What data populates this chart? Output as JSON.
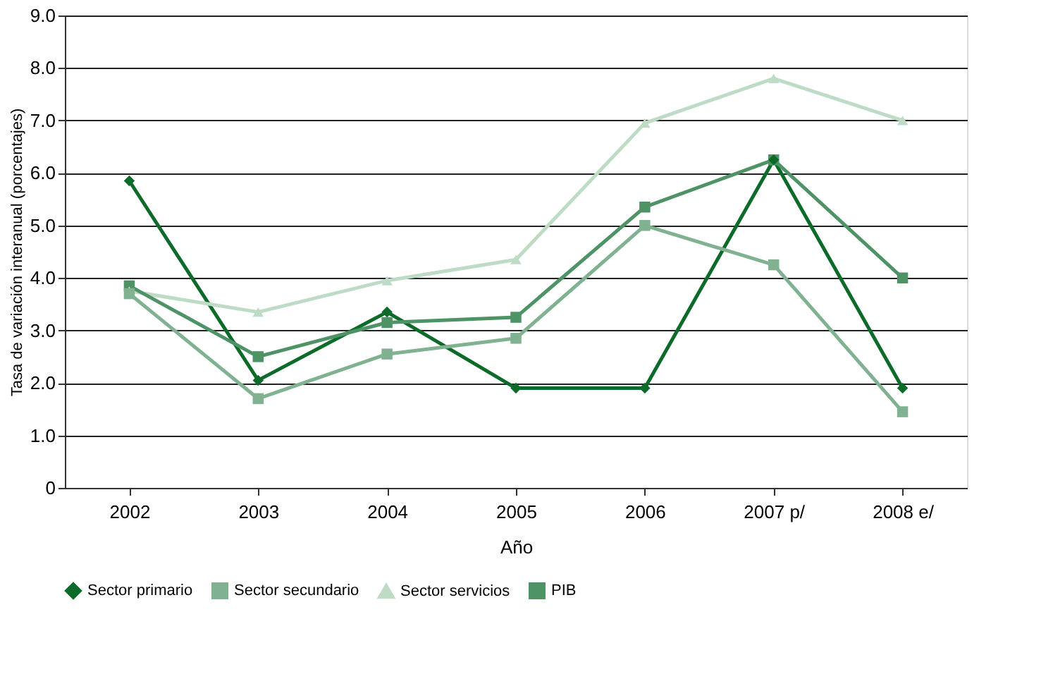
{
  "chart_data": {
    "type": "line",
    "xlabel": "Año",
    "ylabel": "Tasa de variación interanual (porcentajes)",
    "categories": [
      "2002",
      "2003",
      "2004",
      "2005",
      "2006",
      "2007 p/",
      "2008 e/"
    ],
    "series": [
      {
        "name": "Sector primario",
        "color": "#0d6b2a",
        "marker": "diamond",
        "values": [
          5.85,
          2.05,
          3.35,
          1.9,
          1.9,
          6.25,
          1.9
        ]
      },
      {
        "name": "Sector secundario",
        "color": "#80b291",
        "marker": "square",
        "values": [
          3.7,
          1.7,
          2.55,
          2.85,
          5.0,
          4.25,
          1.45
        ]
      },
      {
        "name": "Sector servicios",
        "color": "#bddbc5",
        "marker": "triangle",
        "values": [
          3.75,
          3.35,
          3.95,
          4.35,
          6.95,
          7.8,
          7.0
        ]
      },
      {
        "name": "PIB",
        "color": "#4e9366",
        "marker": "square",
        "values": [
          3.85,
          2.5,
          3.15,
          3.25,
          5.35,
          6.25,
          4.0
        ]
      }
    ],
    "ylim": [
      0,
      9
    ],
    "yticks": [
      0,
      {
        "value": 1,
        "label": "1.0"
      },
      {
        "value": 2,
        "label": "2.0"
      },
      {
        "value": 3,
        "label": "3.0"
      },
      {
        "value": 4,
        "label": "4.0"
      },
      {
        "value": 5,
        "label": "5.0"
      },
      {
        "value": 6,
        "label": "6.0"
      },
      {
        "value": 7,
        "label": "7.0"
      },
      {
        "value": 8,
        "label": "8.0"
      },
      {
        "value": 9,
        "label": "9.0"
      }
    ],
    "grid": "y",
    "legend": "bottom",
    "line_style": "solid"
  }
}
